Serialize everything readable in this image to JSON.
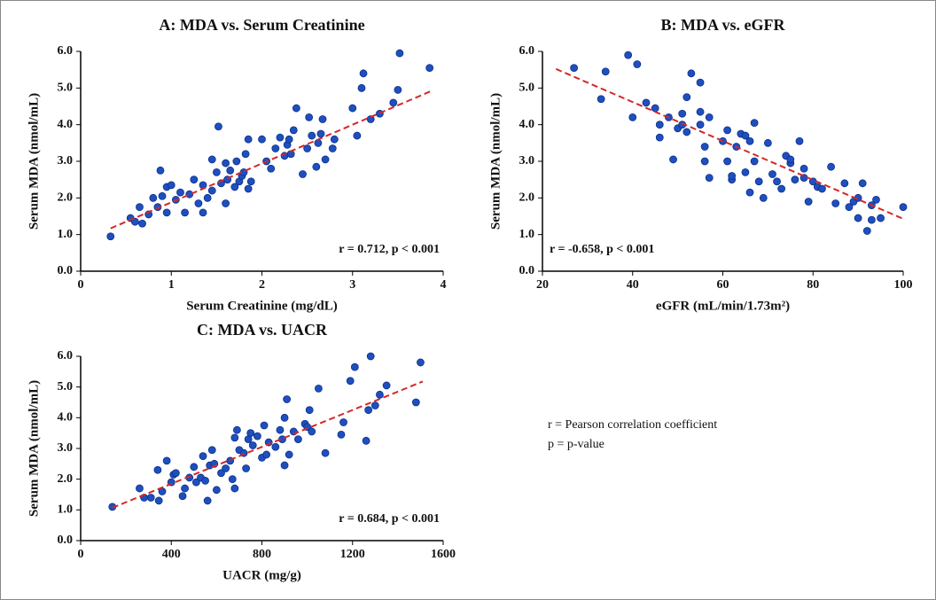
{
  "chart_data": [
    {
      "type": "scatter",
      "title": "A: MDA vs. Serum Creatinine",
      "xlabel": "Serum Creatinine (mg/dL)",
      "ylabel": "Serum MDA (nmol/mL)",
      "annotation": "r = 0.712, p < 0.001",
      "annotation_corner": "lower-right",
      "color": "#1f4fbf",
      "x": [
        0.33,
        0.55,
        0.6,
        0.65,
        0.68,
        0.75,
        0.8,
        0.85,
        0.9,
        0.88,
        0.95,
        0.95,
        1.0,
        1.05,
        1.1,
        1.15,
        1.2,
        1.25,
        1.3,
        1.35,
        1.35,
        1.4,
        1.45,
        1.45,
        1.5,
        1.52,
        1.55,
        1.6,
        1.6,
        1.62,
        1.65,
        1.7,
        1.72,
        1.75,
        1.78,
        1.8,
        1.82,
        1.85,
        1.85,
        1.88,
        2.0,
        2.05,
        2.1,
        2.15,
        2.2,
        2.25,
        2.28,
        2.3,
        2.32,
        2.35,
        2.38,
        2.45,
        2.5,
        2.52,
        2.55,
        2.6,
        2.62,
        2.65,
        2.67,
        2.7,
        2.78,
        2.8,
        3.0,
        3.05,
        3.1,
        3.12,
        3.2,
        3.3,
        3.45,
        3.5,
        3.52,
        3.85
      ],
      "values": [
        0.95,
        1.45,
        1.35,
        1.75,
        1.3,
        1.55,
        2.0,
        1.75,
        2.05,
        2.75,
        2.3,
        1.6,
        2.35,
        1.95,
        2.15,
        1.6,
        2.1,
        2.5,
        1.85,
        2.35,
        1.6,
        2.0,
        3.05,
        2.2,
        2.7,
        3.95,
        2.4,
        2.95,
        1.85,
        2.5,
        2.75,
        2.3,
        3.0,
        2.45,
        2.6,
        2.7,
        3.2,
        3.6,
        2.25,
        2.45,
        3.6,
        3.0,
        2.8,
        3.35,
        3.65,
        3.15,
        3.45,
        3.6,
        3.2,
        3.85,
        4.45,
        2.65,
        3.35,
        4.2,
        3.7,
        2.85,
        3.5,
        3.75,
        4.15,
        3.05,
        3.35,
        3.6,
        4.45,
        3.7,
        5.0,
        5.4,
        4.15,
        4.3,
        4.6,
        4.95,
        5.95,
        5.55
      ],
      "trendline": {
        "x": [
          0.33,
          3.87
        ],
        "y": [
          1.17,
          4.92
        ],
        "color": "#d62728"
      },
      "xlim": [
        0,
        4
      ],
      "ylim": [
        0,
        6
      ],
      "xticks": [
        0,
        1,
        2,
        3,
        4
      ],
      "yticks": [
        {
          "value": 0,
          "label": "0.0"
        },
        {
          "value": 1,
          "label": "1.0"
        },
        {
          "value": 2,
          "label": "2.0"
        },
        {
          "value": 3,
          "label": "3.0"
        },
        {
          "value": 4,
          "label": "4.0"
        },
        {
          "value": 5,
          "label": "5.0"
        },
        {
          "value": 6,
          "label": "6.0"
        }
      ]
    },
    {
      "type": "scatter",
      "title": "B: MDA vs. eGFR",
      "xlabel": "eGFR (mL/min/1.73m²)",
      "ylabel": "Serum MDA (nmol/mL)",
      "annotation": "r = -0.658, p < 0.001",
      "annotation_corner": "lower-left",
      "color": "#1f4fbf",
      "x": [
        27,
        33,
        34,
        39,
        40,
        41,
        43,
        45,
        46,
        46,
        48,
        49,
        50,
        51,
        51,
        52,
        52,
        53,
        55,
        55,
        55,
        56,
        56,
        57,
        57,
        60,
        61,
        61,
        62,
        62,
        63,
        64,
        65,
        65,
        66,
        66,
        67,
        67,
        68,
        69,
        70,
        71,
        72,
        73,
        74,
        75,
        75,
        76,
        77,
        78,
        78,
        79,
        80,
        81,
        82,
        84,
        85,
        87,
        88,
        89,
        90,
        90,
        91,
        92,
        93,
        93,
        94,
        95,
        100
      ],
      "values": [
        5.55,
        4.7,
        5.45,
        5.9,
        4.2,
        5.65,
        4.6,
        4.45,
        3.65,
        4.0,
        4.2,
        3.05,
        3.9,
        4.3,
        4.0,
        3.8,
        4.75,
        5.4,
        4.0,
        5.15,
        4.35,
        3.4,
        3.0,
        2.55,
        4.2,
        3.55,
        3.85,
        3.0,
        2.5,
        2.6,
        3.4,
        3.75,
        2.7,
        3.7,
        2.15,
        3.55,
        3.0,
        4.05,
        2.45,
        2.0,
        3.5,
        2.65,
        2.45,
        2.25,
        3.15,
        2.95,
        3.05,
        2.5,
        3.55,
        2.8,
        2.55,
        1.9,
        2.45,
        2.3,
        2.25,
        2.85,
        1.85,
        2.4,
        1.75,
        1.9,
        1.45,
        2.0,
        2.4,
        1.1,
        1.4,
        1.8,
        1.95,
        1.45,
        1.75
      ],
      "trendline": {
        "x": [
          23,
          100
        ],
        "y": [
          5.52,
          1.43
        ],
        "color": "#d62728"
      },
      "xlim": [
        20,
        100
      ],
      "ylim": [
        0,
        6
      ],
      "xticks": [
        20,
        40,
        60,
        80,
        100
      ],
      "yticks": [
        {
          "value": 0,
          "label": "0.0"
        },
        {
          "value": 1,
          "label": "1.0"
        },
        {
          "value": 2,
          "label": "2.0"
        },
        {
          "value": 3,
          "label": "3.0"
        },
        {
          "value": 4,
          "label": "4.0"
        },
        {
          "value": 5,
          "label": "5.0"
        },
        {
          "value": 6,
          "label": "6.0"
        }
      ]
    },
    {
      "type": "scatter",
      "title": "C: MDA vs. UACR",
      "xlabel": "UACR (mg/g)",
      "ylabel": "Serum MDA (nmol/mL)",
      "annotation": "r = 0.684, p < 0.001",
      "annotation_corner": "lower-right",
      "color": "#1f4fbf",
      "x": [
        140,
        260,
        280,
        310,
        340,
        345,
        360,
        380,
        400,
        410,
        420,
        450,
        460,
        480,
        500,
        510,
        530,
        540,
        550,
        560,
        570,
        580,
        590,
        600,
        620,
        640,
        660,
        670,
        680,
        680,
        690,
        700,
        720,
        730,
        740,
        750,
        760,
        780,
        800,
        810,
        820,
        830,
        860,
        880,
        890,
        900,
        900,
        910,
        920,
        940,
        960,
        990,
        1000,
        1010,
        1020,
        1050,
        1080,
        1150,
        1160,
        1190,
        1210,
        1260,
        1270,
        1280,
        1300,
        1320,
        1350,
        1480,
        1500
      ],
      "values": [
        1.1,
        1.7,
        1.4,
        1.4,
        2.3,
        1.3,
        1.6,
        2.6,
        1.9,
        2.15,
        2.2,
        1.45,
        1.7,
        2.05,
        2.4,
        1.9,
        2.05,
        2.75,
        1.95,
        1.3,
        2.45,
        2.95,
        2.5,
        1.65,
        2.2,
        2.35,
        2.6,
        2.0,
        3.35,
        1.7,
        3.6,
        2.95,
        2.85,
        2.35,
        3.3,
        3.5,
        3.1,
        3.4,
        2.7,
        3.75,
        2.8,
        3.2,
        3.05,
        3.6,
        3.3,
        2.45,
        4.0,
        4.6,
        2.8,
        3.55,
        3.3,
        3.8,
        3.7,
        4.25,
        3.55,
        4.95,
        2.85,
        3.45,
        3.85,
        5.2,
        5.65,
        3.25,
        4.25,
        6.0,
        4.4,
        4.75,
        5.05,
        4.5,
        5.8
      ],
      "trendline": {
        "x": [
          140,
          1510
        ],
        "y": [
          1.07,
          5.18
        ],
        "color": "#d62728"
      },
      "xlim": [
        0,
        1600
      ],
      "ylim": [
        0,
        6
      ],
      "xticks": [
        0,
        400,
        800,
        1200,
        1600
      ],
      "yticks": [
        {
          "value": 0,
          "label": "0.0"
        },
        {
          "value": 1,
          "label": "1.0"
        },
        {
          "value": 2,
          "label": "2.0"
        },
        {
          "value": 3,
          "label": "3.0"
        },
        {
          "value": 4,
          "label": "4.0"
        },
        {
          "value": 5,
          "label": "5.0"
        },
        {
          "value": 6,
          "label": "6.0"
        }
      ]
    }
  ],
  "notes": [
    "r = Pearson correlation coefficient",
    "p = p-value"
  ]
}
